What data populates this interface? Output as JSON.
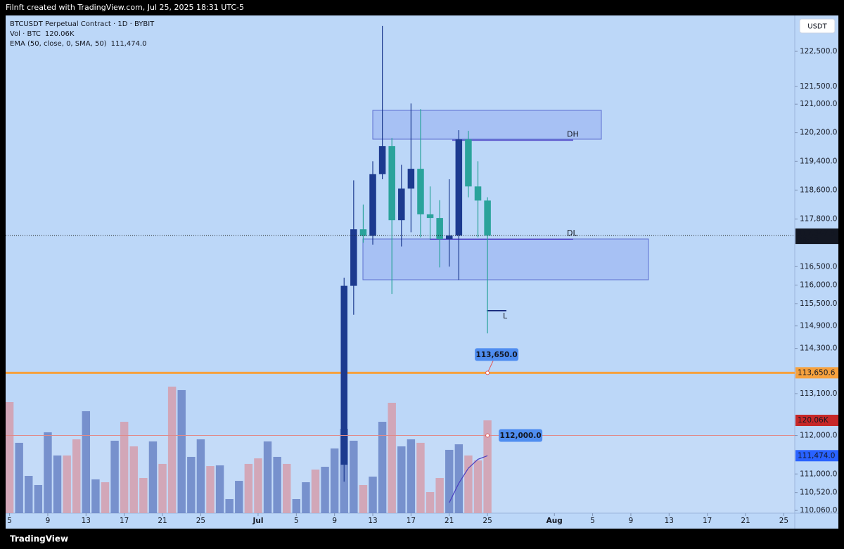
{
  "chart_data": {
    "type": "candlestick",
    "header": "Filnft created with TradingView.com, Jul 25, 2025 18:31 UTC-5",
    "title": "BTCUSDT Perpetual Contract · 1D · BYBIT",
    "currency": "USDT",
    "brand": "TradingView",
    "log_scale": true,
    "ylim": [
      109990,
      123530
    ],
    "yticks": [
      {
        "value": 122500,
        "label": "122,500.0"
      },
      {
        "value": 121500,
        "label": "121,500.0"
      },
      {
        "value": 121000,
        "label": "121,000.0"
      },
      {
        "value": 120200,
        "label": "120,200.0"
      },
      {
        "value": 119400,
        "label": "119,400.0"
      },
      {
        "value": 118600,
        "label": "118,600.0"
      },
      {
        "value": 117800,
        "label": "117,800.0"
      },
      {
        "value": 116500,
        "label": "116,500.0"
      },
      {
        "value": 116000,
        "label": "116,000.0"
      },
      {
        "value": 115500,
        "label": "115,500.0"
      },
      {
        "value": 114900,
        "label": "114,900.0"
      },
      {
        "value": 114300,
        "label": "114,300.0"
      },
      {
        "value": 113100,
        "label": "113,100.0"
      },
      {
        "value": 112000,
        "label": "112,000.0"
      },
      {
        "value": 111000,
        "label": "111,000.0"
      },
      {
        "value": 110520,
        "label": "110,520.0"
      },
      {
        "value": 110060,
        "label": "110,060.0"
      }
    ],
    "xlim": [
      "2025-06-04",
      "2025-08-26"
    ],
    "xticks": [
      {
        "value": "2025-06-05",
        "label": "5"
      },
      {
        "value": "2025-06-09",
        "label": "9"
      },
      {
        "value": "2025-06-13",
        "label": "13"
      },
      {
        "value": "2025-06-17",
        "label": "17"
      },
      {
        "value": "2025-06-21",
        "label": "21"
      },
      {
        "value": "2025-06-25",
        "label": "25"
      },
      {
        "value": "2025-07-01",
        "label": "Jul"
      },
      {
        "value": "2025-07-05",
        "label": "5"
      },
      {
        "value": "2025-07-09",
        "label": "9"
      },
      {
        "value": "2025-07-13",
        "label": "13"
      },
      {
        "value": "2025-07-17",
        "label": "17"
      },
      {
        "value": "2025-07-21",
        "label": "21"
      },
      {
        "value": "2025-07-25",
        "label": "25"
      },
      {
        "value": "2025-08-01",
        "label": "Aug"
      },
      {
        "value": "2025-08-05",
        "label": "5"
      },
      {
        "value": "2025-08-09",
        "label": "9"
      },
      {
        "value": "2025-08-13",
        "label": "13"
      },
      {
        "value": "2025-08-17",
        "label": "17"
      },
      {
        "value": "2025-08-21",
        "label": "21"
      },
      {
        "value": "2025-08-25",
        "label": "25"
      }
    ],
    "x": [
      "2025-07-10",
      "2025-07-11",
      "2025-07-12",
      "2025-07-13",
      "2025-07-14",
      "2025-07-15",
      "2025-07-16",
      "2025-07-17",
      "2025-07-18",
      "2025-07-19",
      "2025-07-20",
      "2025-07-21",
      "2025-07-22",
      "2025-07-23",
      "2025-07-24",
      "2025-07-25"
    ],
    "open": [
      111240,
      115980,
      117520,
      117340,
      119040,
      119820,
      117770,
      118640,
      119190,
      117930,
      117830,
      117250,
      117350,
      120010,
      118700,
      118310
    ],
    "high": [
      116200,
      118870,
      118200,
      119400,
      123230,
      120050,
      119300,
      121020,
      120860,
      118700,
      118320,
      118900,
      120270,
      120250,
      119400,
      118400
    ],
    "low": [
      110800,
      115200,
      117150,
      117100,
      118900,
      115760,
      117050,
      117440,
      117300,
      117250,
      116480,
      116500,
      116140,
      118400,
      117300,
      114700
    ],
    "close": [
      115980,
      117520,
      117340,
      119040,
      119820,
      117770,
      118640,
      119190,
      117930,
      117830,
      117250,
      117350,
      120010,
      118700,
      118310,
      117347.8
    ],
    "up_color": "#1c3a8f",
    "down_color": "#2aa39b",
    "last_price_label": "117,347.8",
    "countdown": "28:13",
    "volume": {
      "name": "Vol · BTC",
      "label_color": "#c62828",
      "vlim": [
        0,
        218290
      ],
      "x": [
        "2025-06-05",
        "2025-06-06",
        "2025-06-07",
        "2025-06-08",
        "2025-06-09",
        "2025-06-10",
        "2025-06-11",
        "2025-06-12",
        "2025-06-13",
        "2025-06-14",
        "2025-06-15",
        "2025-06-16",
        "2025-06-17",
        "2025-06-18",
        "2025-06-19",
        "2025-06-20",
        "2025-06-21",
        "2025-06-22",
        "2025-06-23",
        "2025-06-24",
        "2025-06-25",
        "2025-06-26",
        "2025-06-27",
        "2025-06-28",
        "2025-06-29",
        "2025-06-30",
        "2025-07-01",
        "2025-07-02",
        "2025-07-03",
        "2025-07-04",
        "2025-07-05",
        "2025-07-06",
        "2025-07-07",
        "2025-07-08",
        "2025-07-09",
        "2025-07-10",
        "2025-07-11",
        "2025-07-12",
        "2025-07-13",
        "2025-07-14",
        "2025-07-15",
        "2025-07-16",
        "2025-07-17",
        "2025-07-18",
        "2025-07-19",
        "2025-07-20",
        "2025-07-21",
        "2025-07-22",
        "2025-07-23",
        "2025-07-24",
        "2025-07-25"
      ],
      "values": [
        143700,
        91000,
        48200,
        36400,
        104600,
        74600,
        74600,
        95500,
        131900,
        43700,
        40000,
        93700,
        118200,
        86400,
        45500,
        92800,
        63700,
        163700,
        159200,
        72800,
        95500,
        60900,
        61800,
        18200,
        41800,
        63700,
        70900,
        92800,
        72800,
        63700,
        18200,
        40000,
        56400,
        60000,
        83700,
        109100,
        93700,
        36400,
        47300,
        118200,
        142800,
        86400,
        95500,
        91000,
        27300,
        45500,
        81900,
        89100,
        74600,
        68200,
        120060
      ],
      "value_labels": [
        null,
        null,
        null,
        null,
        null,
        null,
        null,
        null,
        null,
        null,
        null,
        null,
        null,
        null,
        null,
        null,
        null,
        null,
        null,
        null,
        null,
        null,
        null,
        null,
        null,
        null,
        null,
        null,
        null,
        null,
        null,
        null,
        null,
        null,
        null,
        null,
        null,
        null,
        null,
        null,
        null,
        null,
        null,
        null,
        null,
        null,
        null,
        null,
        null,
        null,
        "120.06K"
      ],
      "colors": [
        "#d59dad",
        "#6a84c6",
        "#6a84c6",
        "#6a84c6",
        "#6a84c6",
        "#6a84c6",
        "#d59dad",
        "#d59dad",
        "#6a84c6",
        "#6a84c6",
        "#d59dad",
        "#6a84c6",
        "#d59dad",
        "#d59dad",
        "#d59dad",
        "#6a84c6",
        "#d59dad",
        "#d59dad",
        "#6a84c6",
        "#6a84c6",
        "#6a84c6",
        "#d59dad",
        "#6a84c6",
        "#6a84c6",
        "#6a84c6",
        "#d59dad",
        "#d59dad",
        "#6a84c6",
        "#6a84c6",
        "#d59dad",
        "#6a84c6",
        "#6a84c6",
        "#d59dad",
        "#6a84c6",
        "#6a84c6",
        "#6a84c6",
        "#6a84c6",
        "#d59dad",
        "#6a84c6",
        "#6a84c6",
        "#d59dad",
        "#6a84c6",
        "#6a84c6",
        "#d59dad",
        "#d59dad",
        "#d59dad",
        "#6a84c6",
        "#6a84c6",
        "#d59dad",
        "#d59dad",
        "#d59dad"
      ]
    },
    "ema": {
      "name": "EMA (50, close, 0, SMA, 50)",
      "color": "#4a3fc0",
      "label_color": "#2962ff",
      "values": [
        null,
        null,
        null,
        null,
        null,
        null,
        null,
        null,
        null,
        null,
        null,
        110260,
        110760,
        111150,
        111380,
        111474
      ],
      "value_labels": [
        null,
        null,
        null,
        null,
        null,
        null,
        null,
        null,
        null,
        null,
        null,
        null,
        null,
        null,
        null,
        "111,474.0"
      ]
    },
    "hlines": [
      {
        "value": 113650.6,
        "label": "113,650.6",
        "color": "#f6a13e"
      }
    ],
    "callouts": [
      {
        "x": "2025-07-25",
        "value": 113650,
        "label": "113,650.0"
      },
      {
        "x": "2025-07-25",
        "value": 112000,
        "label": "112,000.0",
        "line_color": "#e08b8b"
      }
    ],
    "levels": [
      {
        "label": "DH",
        "value": 119990
      },
      {
        "label": "DL",
        "value": 117250
      },
      {
        "label": "L",
        "value": 115310
      }
    ]
  }
}
